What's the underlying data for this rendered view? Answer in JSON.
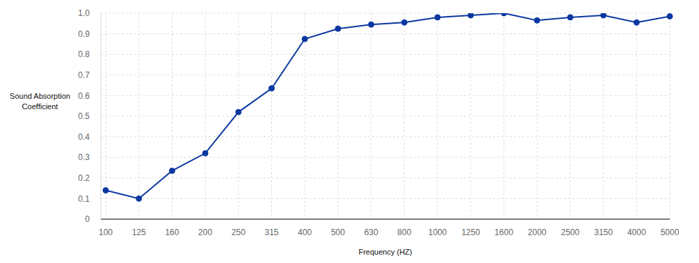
{
  "chart_data": {
    "type": "line",
    "x_label": "Frequency (HZ)",
    "y_label": "Sound Absorption Coefficient",
    "categories": [
      "100",
      "125",
      "160",
      "200",
      "250",
      "315",
      "400",
      "500",
      "630",
      "800",
      "1000",
      "1250",
      "1600",
      "2000",
      "2500",
      "3150",
      "4000",
      "5000"
    ],
    "values": [
      0.14,
      0.1,
      0.235,
      0.32,
      0.52,
      0.635,
      0.875,
      0.925,
      0.945,
      0.955,
      0.98,
      0.99,
      1.0,
      0.965,
      0.98,
      0.99,
      0.955,
      0.985
    ],
    "color": "#0a37a0",
    "marker": "circle",
    "ylim": [
      0,
      1
    ],
    "yticks": [
      0,
      0.1,
      0.2,
      0.3,
      0.4,
      0.5,
      0.6,
      0.7,
      0.8,
      0.9,
      {
        "value": 1,
        "label": "1.0"
      }
    ],
    "grid": true
  }
}
